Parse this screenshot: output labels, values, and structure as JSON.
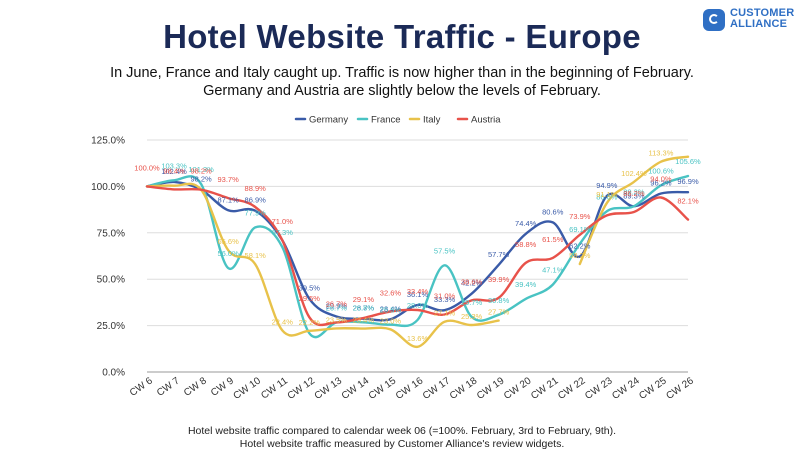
{
  "logo": {
    "line1": "CUSTOMER",
    "line2": "ALLIANCE"
  },
  "header": {
    "title": "Hotel Website Traffic - Europe",
    "subtitle_line1": "In June, France and Italy caught up. Traffic is now higher than in the beginning of February.",
    "subtitle_line2": "Germany and Austria are slightly below the levels of February."
  },
  "footer": {
    "line1": "Hotel website traffic compared to calendar week 06 (=100%. February, 3rd to February, 9th).",
    "line2": "Hotel website traffic measured by Customer Alliance's review widgets."
  },
  "chart_data": {
    "type": "line",
    "title": "",
    "xlabel": "",
    "ylabel": "",
    "categories": [
      "CW 6",
      "CW 7",
      "CW 8",
      "CW 9",
      "CW 10",
      "CW 11",
      "CW 12",
      "CW 13",
      "CW 14",
      "CW 15",
      "CW 16",
      "CW 17",
      "CW 18",
      "CW 19",
      "CW 20",
      "CW 21",
      "CW 22",
      "CW 23",
      "CW 24",
      "CW 25",
      "CW 26"
    ],
    "yticks": [
      "0.0%",
      "25.0%",
      "50.0%",
      "75.0%",
      "100.0%",
      "125.0%"
    ],
    "ylim": [
      0,
      125
    ],
    "grid": true,
    "legend_position": "top-center",
    "series": [
      {
        "name": "Germany",
        "color": "#3a5ba8",
        "values": [
          100.0,
          102.4,
          98.2,
          87.1,
          86.9,
          71.0,
          39.5,
          29.9,
          28.7,
          28.4,
          36.1,
          33.3,
          42.2,
          57.7,
          74.4,
          80.6,
          62.2,
          94.9,
          89.3,
          96.2,
          96.9
        ],
        "labels": [
          "",
          "102.4%",
          "98.2%",
          "87.1%",
          "86.9%",
          "",
          "39.5%",
          "29.9%",
          "28.7%",
          "28.4%",
          "36.1%",
          "33.3%",
          "42.2%",
          "57.7%",
          "74.4%",
          "80.6%",
          "62.2%",
          "94.9%",
          "89.3%",
          "96.2%",
          "96.9%"
        ]
      },
      {
        "name": "France",
        "color": "#49c3c3",
        "values": [
          100.0,
          103.3,
          101.3,
          56.0,
          77.9,
          67.3,
          20.9,
          26.7,
          26.8,
          25.5,
          28.0,
          57.5,
          29.7,
          30.8,
          39.4,
          47.1,
          69.1,
          86.6,
          89.3,
          100.6,
          105.6
        ],
        "labels": [
          "",
          "103.3%",
          "101.3%",
          "56.0%",
          "77.9%",
          "67.3%",
          "",
          "26.7%",
          "26.8%",
          "25.5%",
          "28.0%",
          "57.5%",
          "29.7%",
          "30.8%",
          "39.4%",
          "47.1%",
          "69.1%",
          "86.6%",
          "89.3%",
          "100.6%",
          "105.6%"
        ]
      },
      {
        "name": "Italy",
        "color": "#e8c24a",
        "values": [
          100.0,
          100.4,
          98.2,
          65.6,
          58.1,
          22.4,
          22.2,
          23.5,
          23.4,
          23.0,
          13.6,
          27.1,
          25.3,
          27.7,
          null,
          null,
          58.2,
          91.1,
          102.4,
          113.3,
          116.0
        ],
        "labels": [
          "",
          "",
          "",
          "65.6%",
          "58.1%",
          "22.4%",
          "22.2%",
          "23.5%",
          "23.4%",
          "23.0%",
          "13.6%",
          "27.1%",
          "25.3%",
          "27.7%",
          "",
          "",
          "58.2%",
          "91.1%",
          "102.4%",
          "113.3%",
          ""
        ]
      },
      {
        "name": "Austria",
        "color": "#e8524a",
        "values": [
          100.0,
          98.4,
          98.2,
          93.7,
          88.9,
          71.0,
          29.5,
          26.7,
          29.1,
          32.6,
          33.4,
          31.0,
          38.6,
          39.9,
          58.8,
          61.5,
          73.9,
          84.4,
          86.2,
          94.0,
          82.1
        ],
        "labels": [
          "100.0%",
          "98.4%",
          "98.2%",
          "93.7%",
          "88.9%",
          "71.0%",
          "29.5%",
          "26.7%",
          "29.1%",
          "32.6%",
          "33.4%",
          "31.0%",
          "38.6%",
          "39.9%",
          "58.8%",
          "61.5%",
          "73.9%",
          "",
          "86.2%",
          "94.0%",
          "82.1%"
        ]
      }
    ]
  }
}
